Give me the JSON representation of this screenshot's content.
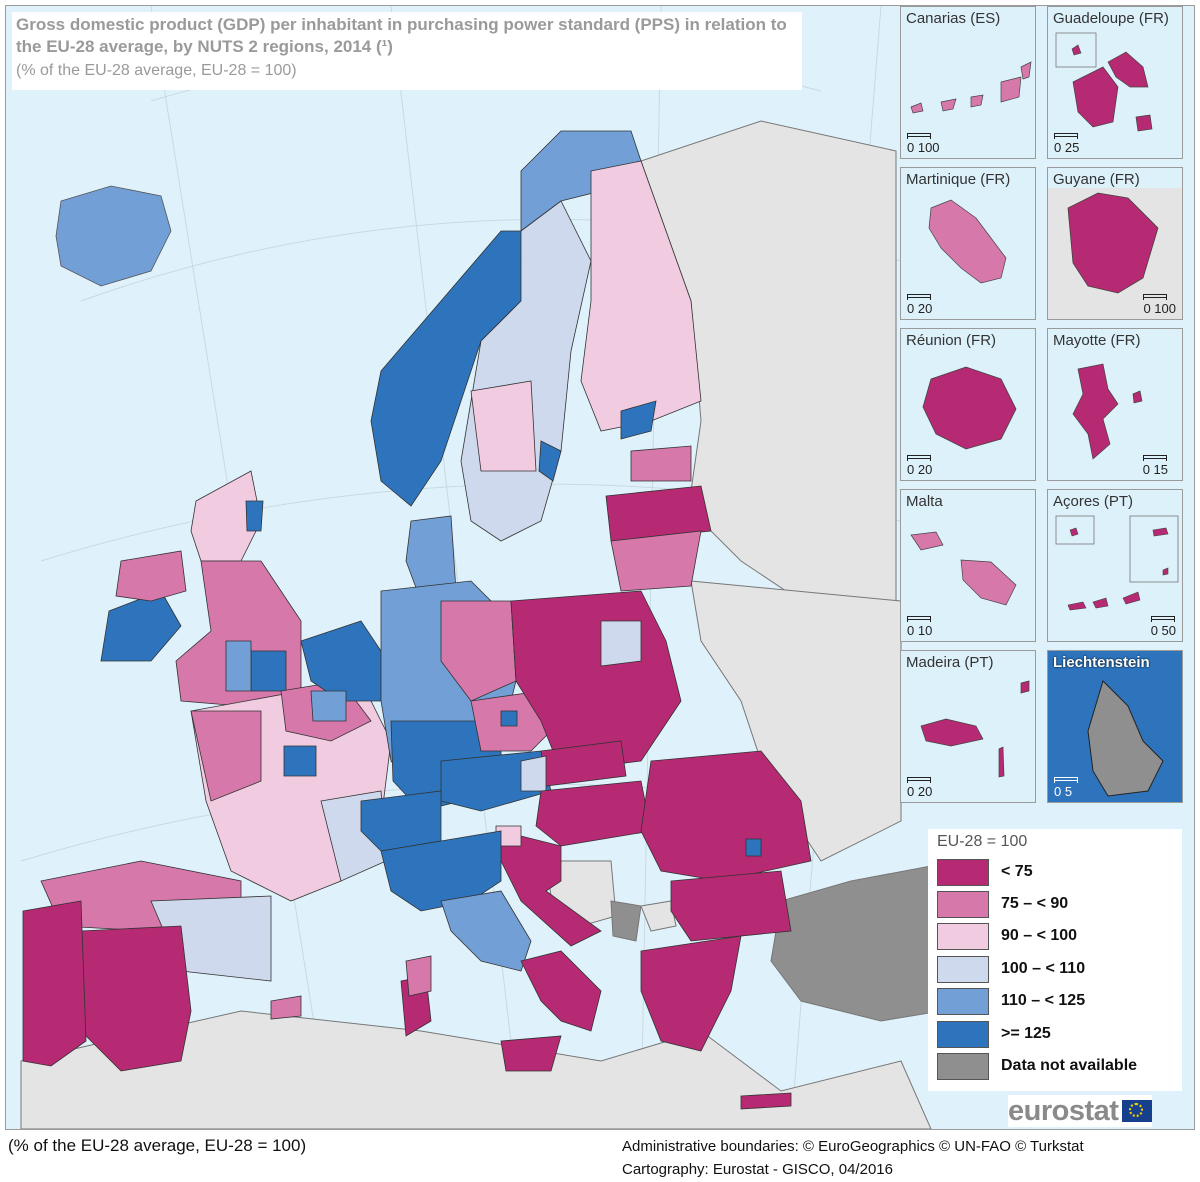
{
  "title": "Gross domestic product (GDP) per inhabitant in purchasing power standard (PPS) in relation to the EU-28 average, by NUTS 2 regions, 2014 (¹)",
  "subtitle": "(% of the EU-28 average, EU-28 = 100)",
  "colors": {
    "sea": "#dff2fb",
    "nonEU": "#e4e4e4",
    "lt75": "#b52a72",
    "75to90": "#d778aa",
    "90to100": "#f1cbe0",
    "100to110": "#cfd9ee",
    "110to125": "#729fd6",
    "ge125": "#2d74bd",
    "na": "#8f8f8f"
  },
  "insets": [
    {
      "name": "Canarias (ES)",
      "scale": "0  100"
    },
    {
      "name": "Guadeloupe (FR)",
      "scale": "0   25"
    },
    {
      "name": "Martinique (FR)",
      "scale": "0   20"
    },
    {
      "name": "Guyane (FR)",
      "scale": "0  100"
    },
    {
      "name": "Réunion (FR)",
      "scale": "0   20"
    },
    {
      "name": "Mayotte (FR)",
      "scale": "0    15"
    },
    {
      "name": "Malta",
      "scale": "0   10"
    },
    {
      "name": "Açores (PT)",
      "scale": "0   50"
    },
    {
      "name": "Madeira (PT)",
      "scale": "0   20"
    },
    {
      "name": "Liechtenstein",
      "scale": "0   5"
    }
  ],
  "legend": {
    "title": "EU-28 = 100",
    "items": [
      {
        "label": "< 75",
        "color": "#b52a72"
      },
      {
        "label": "75 – < 90",
        "color": "#d778aa"
      },
      {
        "label": "90 – < 100",
        "color": "#f1cbe0"
      },
      {
        "label": "100 – < 110",
        "color": "#cfd9ee"
      },
      {
        "label": "110 – < 125",
        "color": "#729fd6"
      },
      {
        "label": ">= 125",
        "color": "#2d74bd"
      },
      {
        "label": "Data not available",
        "color": "#8f8f8f"
      }
    ]
  },
  "logo": "eurostat",
  "footer": {
    "left": "(% of the EU-28 average, EU-28 = 100)",
    "admin": "Administrative boundaries: © EuroGeographics © UN-FAO © Turkstat",
    "carto": "Cartography: Eurostat - GISCO, 04/2016"
  }
}
